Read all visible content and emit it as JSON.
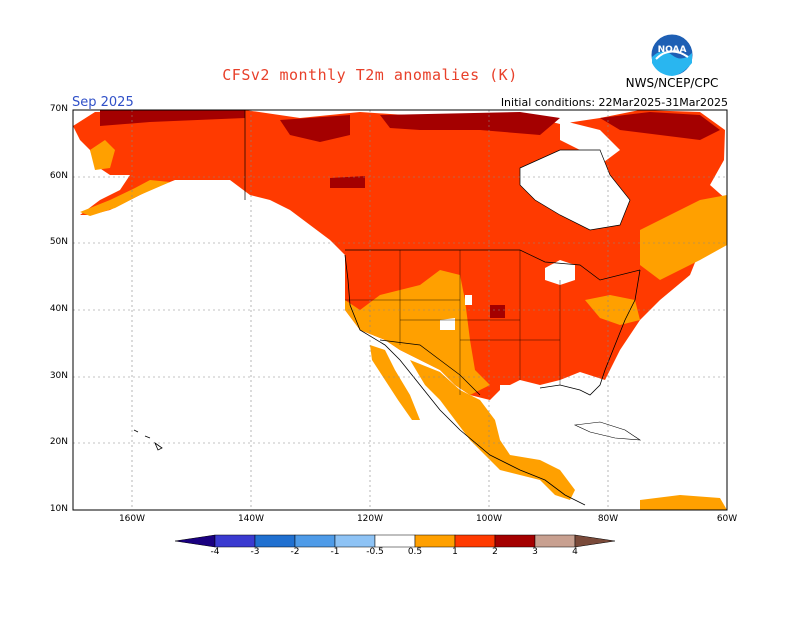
{
  "title": "CFSv2 monthly T2m anomalies (K)",
  "month": "Sep 2025",
  "initial_conditions": "Initial conditions: 22Mar2025-31Mar2025",
  "agency": "NWS/NCEP/CPC",
  "logo": {
    "text": "NOAA",
    "icon": "noaa-logo-icon"
  },
  "map": {
    "lat_labels": [
      "70N",
      "60N",
      "50N",
      "40N",
      "30N",
      "20N",
      "10N"
    ],
    "lon_labels": [
      "160W",
      "140W",
      "120W",
      "100W",
      "80W",
      "60W"
    ],
    "lat_range": [
      10,
      70
    ],
    "lon_range": [
      -170,
      -60
    ],
    "grid": "dotted"
  },
  "colorbar": {
    "tick_labels": [
      "-4",
      "-3",
      "-2",
      "-1",
      "-0.5",
      "0.5",
      "1",
      "2",
      "3",
      "4"
    ],
    "colors": [
      "#1a0080",
      "#3a3ad0",
      "#2070d0",
      "#4e9be8",
      "#8ec3f5",
      "#ffffff",
      "#ffa000",
      "#ff3a00",
      "#a40000",
      "#c8a090",
      "#7a4a3a"
    ],
    "dominant_colors": {
      "weak_warm": "#ffa000",
      "warm": "#ff3a00",
      "strong_warm": "#a40000"
    }
  }
}
